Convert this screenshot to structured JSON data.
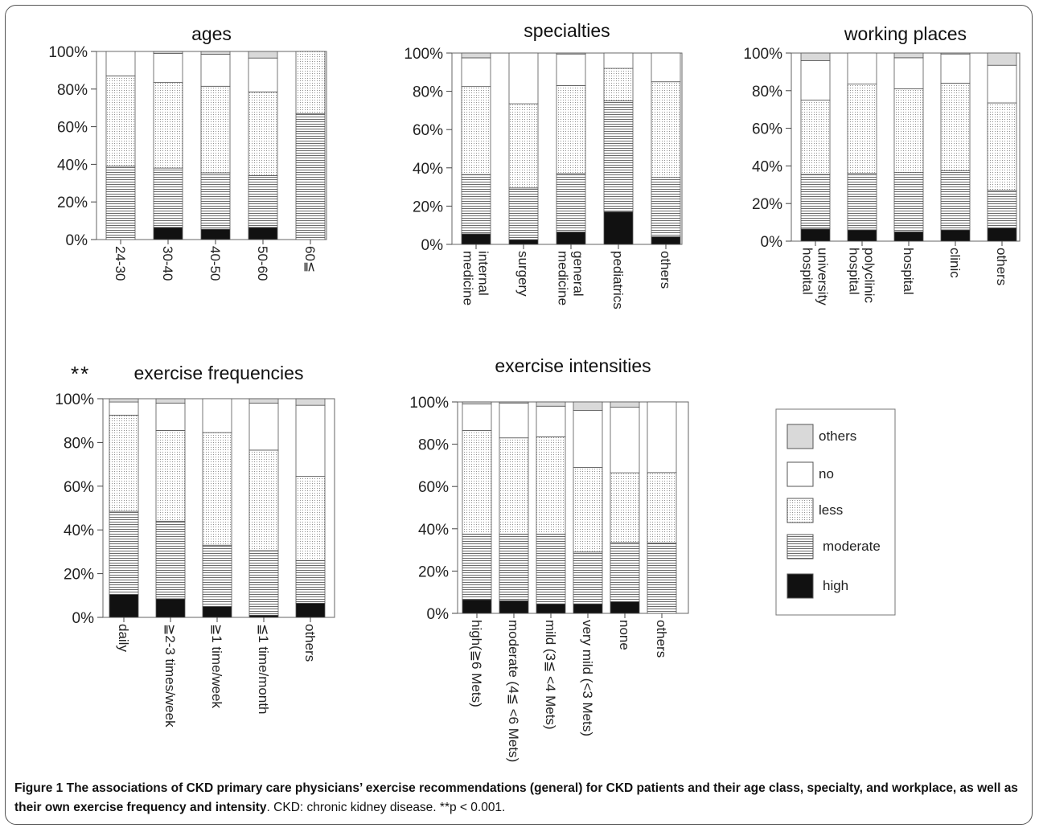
{
  "legend": {
    "items": [
      {
        "key": "others",
        "label": "others",
        "fill": "#d9d9d9"
      },
      {
        "key": "no",
        "label": "no",
        "fill": "#ffffff"
      },
      {
        "key": "less",
        "label": "less",
        "pattern": "dots"
      },
      {
        "key": "moderate",
        "label": "moderate",
        "pattern": "hlines"
      },
      {
        "key": "high",
        "label": "high",
        "fill": "#111111"
      }
    ]
  },
  "significance_marker": "**",
  "caption": {
    "figure_label": "Figure 1",
    "bold_text": "The associations of CKD primary care physicians’ exercise recommendations (general) for CKD patients and their age class, specialty, and workplace, as well as their own exercise frequency and intensity",
    "rest_text": ". CKD: chronic kidney disease. **p < 0.001."
  },
  "chart_data": [
    {
      "id": "ages",
      "type": "bar",
      "stacked": true,
      "title": "ages",
      "ylim": [
        0,
        100
      ],
      "yticks": [
        "0%",
        "20%",
        "40%",
        "60%",
        "80%",
        "100%"
      ],
      "categories": [
        [
          "24-30"
        ],
        [
          "30-40"
        ],
        [
          "40-50"
        ],
        [
          "50-60"
        ],
        [
          "60≦"
        ]
      ],
      "series": [
        {
          "name": "high",
          "values": [
            0,
            6.5,
            5.5,
            6.5,
            0
          ]
        },
        {
          "name": "moderate",
          "values": [
            39,
            31.5,
            30,
            27.5,
            67
          ]
        },
        {
          "name": "less",
          "values": [
            48,
            45.5,
            46,
            44.5,
            33
          ]
        },
        {
          "name": "no",
          "values": [
            13,
            15.5,
            17,
            18,
            0
          ]
        },
        {
          "name": "others",
          "values": [
            0,
            1,
            1.5,
            3.5,
            0
          ]
        }
      ]
    },
    {
      "id": "specialties",
      "type": "bar",
      "stacked": true,
      "title": "specialties",
      "ylim": [
        0,
        100
      ],
      "yticks": [
        "0%",
        "20%",
        "40%",
        "60%",
        "80%",
        "100%"
      ],
      "categories": [
        [
          "internal",
          "medicine"
        ],
        [
          "surgery"
        ],
        [
          "general",
          "medicine"
        ],
        [
          "pediatrics"
        ],
        [
          "others"
        ]
      ],
      "series": [
        {
          "name": "high",
          "values": [
            5.5,
            2.5,
            6.5,
            17,
            4
          ]
        },
        {
          "name": "moderate",
          "values": [
            31,
            27,
            30.5,
            58,
            31
          ]
        },
        {
          "name": "less",
          "values": [
            46,
            44,
            46,
            17,
            50
          ]
        },
        {
          "name": "no",
          "values": [
            15,
            26.5,
            16.5,
            8,
            15
          ]
        },
        {
          "name": "others",
          "values": [
            2.5,
            0,
            0.5,
            0,
            0
          ]
        }
      ]
    },
    {
      "id": "working_places",
      "type": "bar",
      "stacked": true,
      "title": "working places",
      "ylim": [
        0,
        100
      ],
      "yticks": [
        "0%",
        "20%",
        "40%",
        "60%",
        "80%",
        "100%"
      ],
      "categories": [
        [
          "university",
          "hospital"
        ],
        [
          "polyclinic",
          "hospital"
        ],
        [
          "hospital"
        ],
        [
          "clinic"
        ],
        [
          "others"
        ]
      ],
      "series": [
        {
          "name": "high",
          "values": [
            6.5,
            6,
            5,
            6,
            7
          ]
        },
        {
          "name": "moderate",
          "values": [
            29,
            30,
            31.5,
            31.5,
            20
          ]
        },
        {
          "name": "less",
          "values": [
            39.5,
            47.5,
            44.5,
            46.5,
            46.5
          ]
        },
        {
          "name": "no",
          "values": [
            21,
            16.5,
            16.5,
            15.5,
            20
          ]
        },
        {
          "name": "others",
          "values": [
            4,
            0,
            2.5,
            0.5,
            6.5
          ]
        }
      ]
    },
    {
      "id": "exercise_frequencies",
      "type": "bar",
      "stacked": true,
      "title": "exercise frequencies",
      "ylim": [
        0,
        100
      ],
      "yticks": [
        "0%",
        "20%",
        "40%",
        "60%",
        "80%",
        "100%"
      ],
      "categories": [
        [
          "daily"
        ],
        [
          "≧2-3 times/week"
        ],
        [
          "≧1 time/week"
        ],
        [
          "≦1 time/month"
        ],
        [
          "others"
        ]
      ],
      "series": [
        {
          "name": "high",
          "values": [
            10.5,
            8.5,
            5,
            1,
            6.5
          ]
        },
        {
          "name": "moderate",
          "values": [
            38,
            35.5,
            28,
            29.5,
            19.5
          ]
        },
        {
          "name": "less",
          "values": [
            44,
            41.5,
            51.5,
            46,
            38.5
          ]
        },
        {
          "name": "no",
          "values": [
            6,
            12.5,
            15.5,
            21.5,
            32.5
          ]
        },
        {
          "name": "others",
          "values": [
            1.5,
            2,
            0,
            2,
            3
          ]
        }
      ]
    },
    {
      "id": "exercise_intensities",
      "type": "bar",
      "stacked": true,
      "title": "exercise intensities",
      "ylim": [
        0,
        100
      ],
      "yticks": [
        "0%",
        "20%",
        "40%",
        "60%",
        "80%",
        "100%"
      ],
      "categories": [
        [
          "high(≧6 Mets)"
        ],
        [
          "moderate (4≦ <6 Mets)"
        ],
        [
          "mild (3≦ <4 Mets)"
        ],
        [
          "very mild (<3 Mets)"
        ],
        [
          "none"
        ],
        [
          "others"
        ]
      ],
      "series": [
        {
          "name": "high",
          "values": [
            6.5,
            6,
            4.5,
            4.5,
            5.5,
            0
          ]
        },
        {
          "name": "moderate",
          "values": [
            31,
            31.5,
            33,
            24.5,
            28,
            33.3
          ]
        },
        {
          "name": "less",
          "values": [
            49,
            45.5,
            46,
            40,
            33,
            33.3
          ]
        },
        {
          "name": "no",
          "values": [
            12.5,
            16.5,
            14.5,
            27,
            31,
            33.4
          ]
        },
        {
          "name": "others",
          "values": [
            1,
            0.5,
            2,
            4,
            2.5,
            0
          ]
        }
      ]
    }
  ]
}
